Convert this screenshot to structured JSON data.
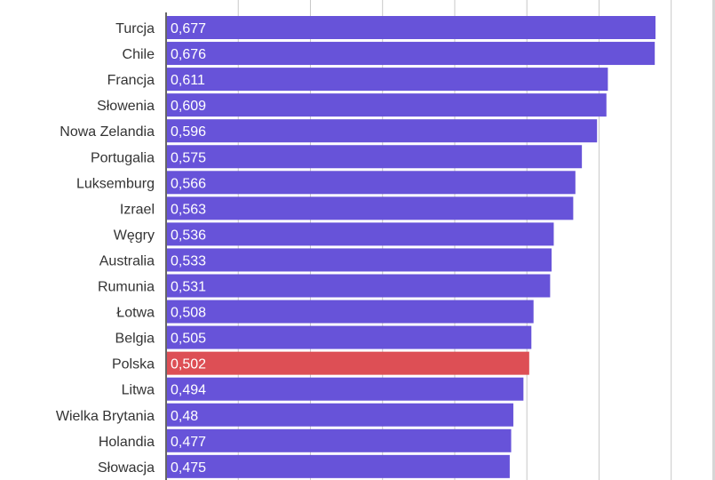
{
  "chart_data": {
    "type": "bar",
    "orientation": "horizontal",
    "title": "",
    "xlabel": "",
    "ylabel": "",
    "categories": [
      "Turcja",
      "Chile",
      "Francja",
      "Słowenia",
      "Nowa Zelandia",
      "Portugalia",
      "Luksemburg",
      "Izrael",
      "Węgry",
      "Australia",
      "Rumunia",
      "Łotwa",
      "Belgia",
      "Polska",
      "Litwa",
      "Wielka Brytania",
      "Holandia",
      "Słowacja"
    ],
    "values": [
      0.677,
      0.676,
      0.611,
      0.609,
      0.596,
      0.575,
      0.566,
      0.563,
      0.536,
      0.533,
      0.531,
      0.508,
      0.505,
      0.502,
      0.494,
      0.48,
      0.477,
      0.475
    ],
    "value_labels": [
      "0,677",
      "0,676",
      "0,611",
      "0,609",
      "0,596",
      "0,575",
      "0,566",
      "0,563",
      "0,536",
      "0,533",
      "0,531",
      "0,508",
      "0,505",
      "0,502",
      "0,494",
      "0,48",
      "0,477",
      "0,475"
    ],
    "highlight_category": "Polska",
    "xlim": [
      0,
      0.7
    ],
    "grid": true,
    "legend": "none",
    "colors": {
      "bar": "#6753d9",
      "highlight": "#dd4f55",
      "grid": "#c8c8c8",
      "axis": "#333333"
    }
  }
}
